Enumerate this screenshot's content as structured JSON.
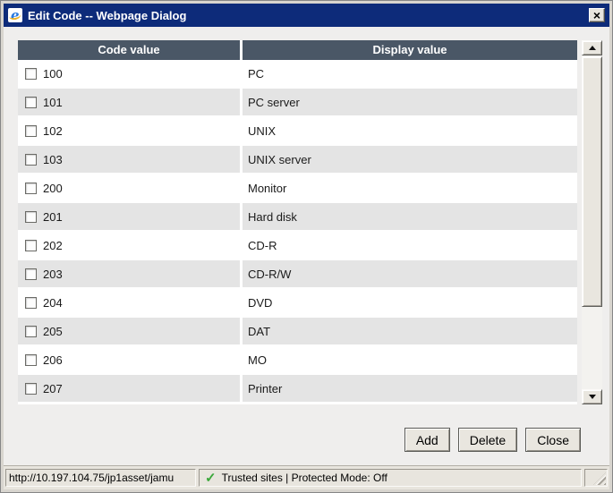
{
  "window": {
    "title": "Edit Code -- Webpage Dialog",
    "close_icon": "×"
  },
  "table": {
    "columns": [
      "Code value",
      "Display value"
    ],
    "rows": [
      {
        "code": "100",
        "display": "PC"
      },
      {
        "code": "101",
        "display": "PC server"
      },
      {
        "code": "102",
        "display": "UNIX"
      },
      {
        "code": "103",
        "display": "UNIX server"
      },
      {
        "code": "200",
        "display": "Monitor"
      },
      {
        "code": "201",
        "display": "Hard disk"
      },
      {
        "code": "202",
        "display": "CD-R"
      },
      {
        "code": "203",
        "display": "CD-R/W"
      },
      {
        "code": "204",
        "display": "DVD"
      },
      {
        "code": "205",
        "display": "DAT"
      },
      {
        "code": "206",
        "display": "MO"
      },
      {
        "code": "207",
        "display": "Printer"
      }
    ]
  },
  "buttons": {
    "add": "Add",
    "delete": "Delete",
    "close": "Close"
  },
  "status_bar": {
    "url": "http://10.197.104.75/jp1asset/jamu",
    "check_icon": "✓",
    "zone": "Trusted sites | Protected Mode: Off"
  },
  "colors": {
    "title_bar": "#0d2b7a",
    "table_header": "#4a5766",
    "row_alt": "#e4e4e4",
    "check_green": "#3aa83a"
  }
}
